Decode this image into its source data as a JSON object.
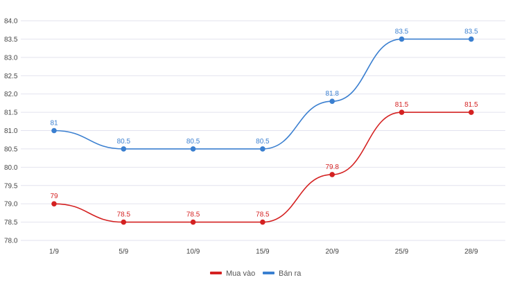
{
  "chart_data": {
    "type": "line",
    "categories": [
      "1/9",
      "5/9",
      "10/9",
      "15/9",
      "20/9",
      "25/9",
      "28/9"
    ],
    "ylim": [
      78.0,
      84.0
    ],
    "yticks": [
      "78.0",
      "78.5",
      "79.0",
      "79.5",
      "80.0",
      "80.5",
      "81.0",
      "81.5",
      "82.0",
      "82.5",
      "83.0",
      "83.5",
      "84.0"
    ],
    "grid": true,
    "legend_position": "bottom-center",
    "series": [
      {
        "name": "Mua vào",
        "color": "#d42121",
        "values": [
          79,
          78.5,
          78.5,
          78.5,
          79.8,
          81.5,
          81.5
        ],
        "labels": [
          "79",
          "78.5",
          "78.5",
          "78.5",
          "79.8",
          "81.5",
          "81.5"
        ]
      },
      {
        "name": "Bán ra",
        "color": "#3a7fd0",
        "values": [
          81,
          80.5,
          80.5,
          80.5,
          81.8,
          83.5,
          83.5
        ],
        "labels": [
          "81",
          "80.5",
          "80.5",
          "80.5",
          "81.8",
          "83.5",
          "83.5"
        ]
      }
    ]
  }
}
